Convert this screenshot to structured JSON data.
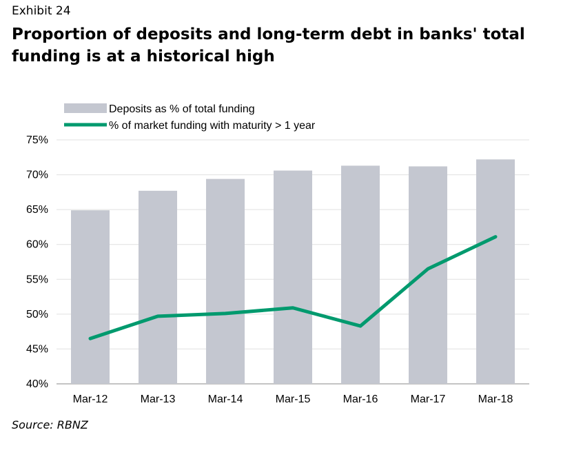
{
  "header": {
    "exhibit": "Exhibit 24",
    "title": "Proportion of deposits and long-term debt in banks' total funding is at a historical high"
  },
  "footer": {
    "source": "Source: RBNZ"
  },
  "chart_data": {
    "type": "bar",
    "categories": [
      "Mar-12",
      "Mar-13",
      "Mar-14",
      "Mar-15",
      "Mar-16",
      "Mar-17",
      "Mar-18"
    ],
    "series": [
      {
        "name": "Deposits as % of total funding",
        "kind": "bar",
        "color": "#c4c7d0",
        "values": [
          64.9,
          67.7,
          69.4,
          70.6,
          71.3,
          71.2,
          72.2
        ]
      },
      {
        "name": "% of market funding with maturity > 1 year",
        "kind": "line",
        "color": "#009a6e",
        "values": [
          46.5,
          49.7,
          50.1,
          50.9,
          48.3,
          56.5,
          61.1
        ]
      }
    ],
    "ylim": [
      40,
      75
    ],
    "yticks": [
      40,
      45,
      50,
      55,
      60,
      65,
      70,
      75
    ],
    "ytick_format": "%",
    "grid": true,
    "legend": "top-left"
  }
}
